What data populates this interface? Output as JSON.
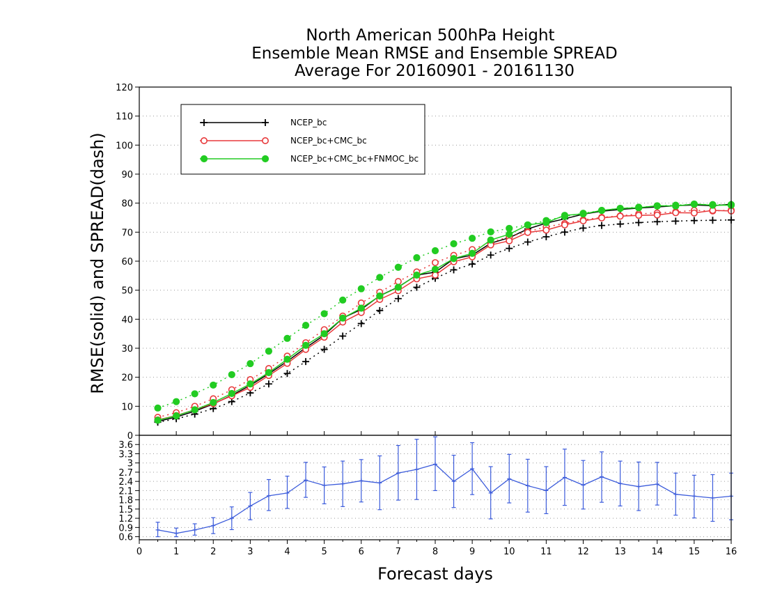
{
  "chart_data": [
    {
      "type": "line",
      "title": [
        "North American 500hPa Height",
        "Ensemble Mean RMSE and Ensemble SPREAD",
        "Average For 20160901 - 20161130"
      ],
      "xlabel": "Forecast days",
      "ylabel": "RMSE(solid) and SPREAD(dash)",
      "xlim": [
        0,
        16
      ],
      "ylim": [
        0,
        120
      ],
      "x_ticks": [
        0,
        1,
        2,
        3,
        4,
        5,
        6,
        7,
        8,
        9,
        10,
        11,
        12,
        13,
        14,
        15,
        16
      ],
      "y_ticks": [
        0,
        10,
        20,
        30,
        40,
        50,
        60,
        70,
        80,
        90,
        100,
        110,
        120
      ],
      "grid": "horizontal dotted",
      "legend_position": "top-left",
      "x": [
        0.5,
        1,
        1.5,
        2,
        2.5,
        3,
        3.5,
        4,
        4.5,
        5,
        5.5,
        6,
        6.5,
        7,
        7.5,
        8,
        8.5,
        9,
        9.5,
        10,
        10.5,
        11,
        11.5,
        12,
        12.5,
        13,
        13.5,
        14,
        14.5,
        15,
        15.5,
        16
      ],
      "series": [
        {
          "name": "NCEP_bc",
          "color": "#000000",
          "marker": "plus",
          "rmse": [
            4.8,
            6.3,
            8.3,
            10.8,
            13.8,
            17.2,
            21.2,
            25.5,
            30.2,
            34.5,
            40.4,
            43.4,
            48.1,
            51.1,
            55.2,
            56.2,
            60.8,
            62.1,
            66.2,
            68.1,
            71.1,
            73.1,
            74.6,
            76.2,
            77.2,
            77.8,
            78.3,
            78.7,
            79.1,
            79.4,
            79.1,
            79.6
          ],
          "spread": [
            4.5,
            5.7,
            7.3,
            9.2,
            11.6,
            14.6,
            17.7,
            21.3,
            25.4,
            29.6,
            34.2,
            38.5,
            43.0,
            47.1,
            51.0,
            54.1,
            57.0,
            59.0,
            62.1,
            64.4,
            66.6,
            68.4,
            70.0,
            71.4,
            72.3,
            72.8,
            73.3,
            73.6,
            73.8,
            74.0,
            74.1,
            74.2
          ]
        },
        {
          "name": "NCEP_bc+CMC_bc",
          "color": "#e8393b",
          "marker": "open-circle",
          "rmse": [
            5.3,
            6.8,
            8.8,
            10.9,
            13.6,
            16.5,
            20.6,
            24.8,
            29.6,
            33.8,
            39.0,
            42.3,
            46.8,
            49.8,
            53.9,
            55.2,
            59.8,
            61.5,
            65.6,
            67.0,
            69.9,
            70.7,
            72.5,
            73.9,
            74.9,
            75.5,
            75.8,
            75.9,
            76.7,
            76.6,
            77.5,
            77.3
          ],
          "spread": [
            6.2,
            7.8,
            10.0,
            12.6,
            15.7,
            19.2,
            23.0,
            27.3,
            31.9,
            36.4,
            41.1,
            45.6,
            49.3,
            53.0,
            56.3,
            59.5,
            62.0,
            64.0,
            66.5,
            68.4,
            70.2,
            71.8,
            73.0,
            74.2,
            75.1,
            75.6,
            76.3,
            76.6,
            77.0,
            77.5,
            77.3,
            77.6
          ]
        },
        {
          "name": "NCEP_bc+CMC_bc+FNMOC_bc",
          "color": "#22cc22",
          "marker": "filled-circle",
          "rmse": [
            5.2,
            6.7,
            8.8,
            11.3,
            14.4,
            17.7,
            21.6,
            26.2,
            31.0,
            35.0,
            40.4,
            43.8,
            48.0,
            51.0,
            55.2,
            57.2,
            60.9,
            62.7,
            67.3,
            69.3,
            72.5,
            73.3,
            75.8,
            76.3,
            77.5,
            78.2,
            78.4,
            79.1,
            79.0,
            79.7,
            79.3,
            79.3
          ],
          "spread": [
            9.4,
            11.6,
            14.3,
            17.3,
            20.9,
            24.7,
            29.0,
            33.4,
            37.9,
            41.9,
            46.6,
            50.5,
            54.4,
            57.9,
            61.2,
            63.6,
            66.0,
            67.9,
            70.1,
            71.3,
            72.5,
            74.0,
            75.4,
            76.5,
            77.5,
            78.2,
            78.6,
            79.0,
            79.3,
            79.6,
            79.5,
            79.5
          ]
        }
      ]
    },
    {
      "type": "line",
      "subtype": "errorbar",
      "xlim": [
        0,
        16
      ],
      "ylim": [
        0.5,
        3.9
      ],
      "y_ticks": [
        0.6,
        0.9,
        1.2,
        1.5,
        1.8,
        2.1,
        2.4,
        2.7,
        3,
        3.3,
        3.6
      ],
      "y_tick_labels": [
        "0.6",
        "0.9",
        "1.2",
        "1.5",
        "1.8",
        "2.1",
        "2.4",
        "2.7",
        "3",
        "3.3",
        "3.6"
      ],
      "grid": "horizontal dotted",
      "color": "#3b5bdb",
      "x": [
        0.5,
        1,
        1.5,
        2,
        2.5,
        3,
        3.5,
        4,
        4.5,
        5,
        5.5,
        6,
        6.5,
        7,
        7.5,
        8,
        8.5,
        9,
        9.5,
        10,
        10.5,
        11,
        11.5,
        12,
        12.5,
        13,
        13.5,
        14,
        14.5,
        15,
        15.5,
        16
      ],
      "values": [
        0.82,
        0.71,
        0.82,
        0.96,
        1.2,
        1.6,
        1.93,
        2.02,
        2.44,
        2.27,
        2.32,
        2.42,
        2.35,
        2.67,
        2.79,
        2.96,
        2.4,
        2.81,
        2.02,
        2.48,
        2.26,
        2.1,
        2.53,
        2.28,
        2.55,
        2.33,
        2.23,
        2.31,
        1.98,
        1.92,
        1.86,
        1.92
      ],
      "lower": [
        0.6,
        0.6,
        0.65,
        0.7,
        0.83,
        1.15,
        1.45,
        1.52,
        1.88,
        1.67,
        1.58,
        1.73,
        1.48,
        1.79,
        1.81,
        2.1,
        1.55,
        1.97,
        1.18,
        1.7,
        1.4,
        1.35,
        1.62,
        1.5,
        1.72,
        1.6,
        1.45,
        1.63,
        1.3,
        1.21,
        1.1,
        1.15
      ],
      "upper": [
        1.07,
        0.88,
        1.02,
        1.22,
        1.57,
        2.04,
        2.46,
        2.57,
        3.02,
        2.87,
        3.06,
        3.11,
        3.23,
        3.57,
        3.77,
        3.85,
        3.25,
        3.66,
        2.88,
        3.28,
        3.12,
        2.88,
        3.45,
        3.08,
        3.36,
        3.06,
        3.03,
        3.02,
        2.67,
        2.6,
        2.62,
        2.67
      ]
    }
  ]
}
